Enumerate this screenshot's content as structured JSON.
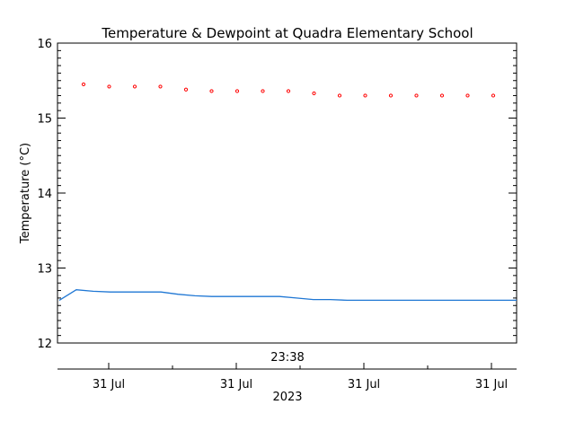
{
  "chart_data": {
    "type": "line",
    "title": "Temperature & Dewpoint at Quadra Elementary School",
    "ylabel": "Temperature (°C)",
    "xlabel": "2023",
    "time_label": "23:38",
    "ylim": [
      12,
      16
    ],
    "y_ticks": [
      "12",
      "13",
      "14",
      "15",
      "16"
    ],
    "x_ticks": [
      "31 Jul",
      "31 Jul",
      "31 Jul",
      "31 Jul"
    ],
    "grid": false,
    "series": [
      {
        "color": "#ff0000",
        "style": "points",
        "values": [
          15.45,
          15.42,
          15.42,
          15.42,
          15.38,
          15.36,
          15.36,
          15.36,
          15.36,
          15.33,
          15.3,
          15.3,
          15.3,
          15.3,
          15.3,
          15.3,
          15.3
        ]
      },
      {
        "color": "#1f77d4",
        "style": "line",
        "values": [
          12.57,
          12.71,
          12.69,
          12.68,
          12.68,
          12.68,
          12.68,
          12.65,
          12.63,
          12.62,
          12.62,
          12.62,
          12.62,
          12.62,
          12.6,
          12.58,
          12.58,
          12.57,
          12.57,
          12.57,
          12.57,
          12.57,
          12.57,
          12.57,
          12.57,
          12.57,
          12.57,
          12.57
        ]
      }
    ]
  }
}
